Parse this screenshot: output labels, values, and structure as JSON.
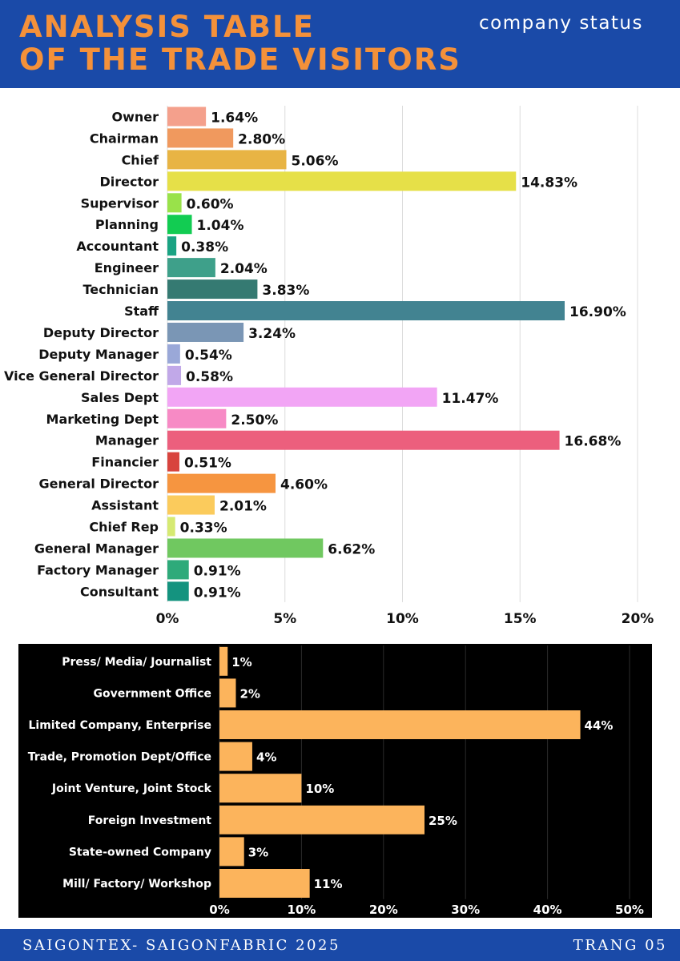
{
  "header": {
    "title_line1": "ANALYSIS TABLE",
    "title_line2": "OF THE TRADE VISITORS",
    "subtitle": "company status"
  },
  "footer": {
    "left": "SAIGONTEX- SAIGONFABRIC 2025",
    "right": "TRANG 05"
  },
  "chart_data": [
    {
      "type": "bar",
      "orientation": "horizontal",
      "categories": [
        "Owner",
        "Chairman",
        "Chief",
        "Director",
        "Supervisor",
        "Planning",
        "Accountant",
        "Engineer",
        "Technician",
        "Staff",
        "Deputy Director",
        "Deputy Manager",
        "Vice General Director",
        "Sales Dept",
        "Marketing Dept",
        "Manager",
        "Financier",
        "General Director",
        "Assistant",
        "Chief Rep",
        "General Manager",
        "Factory Manager",
        "Consultant"
      ],
      "values": [
        1.64,
        2.8,
        5.06,
        14.83,
        0.6,
        1.04,
        0.38,
        2.04,
        3.83,
        16.9,
        3.24,
        0.54,
        0.58,
        11.47,
        2.5,
        16.68,
        0.51,
        4.6,
        2.01,
        0.33,
        6.62,
        0.91,
        0.91
      ],
      "value_labels": [
        "1.64%",
        "2.80%",
        "5.06%",
        "14.83%",
        "0.60%",
        "1.04%",
        "0.38%",
        "2.04%",
        "3.83%",
        "16.90%",
        "3.24%",
        "0.54%",
        "0.58%",
        "11.47%",
        "2.50%",
        "16.68%",
        "0.51%",
        "4.60%",
        "2.01%",
        "0.33%",
        "6.62%",
        "0.91%",
        "0.91%"
      ],
      "colors": [
        "#f4a08c",
        "#f0995e",
        "#e8b444",
        "#e6e048",
        "#99e24a",
        "#12cc52",
        "#1aa383",
        "#3ea08a",
        "#357a72",
        "#428391",
        "#7a96b5",
        "#9aa8d8",
        "#c1a8e8",
        "#f2a5f5",
        "#f78ac5",
        "#ec5f7d",
        "#d8443e",
        "#f69540",
        "#fbcb5c",
        "#d6ea72",
        "#70c860",
        "#2eaa7a",
        "#14937f"
      ],
      "xlim": [
        0,
        20
      ],
      "x_ticks": [
        0,
        5,
        10,
        15,
        20
      ],
      "x_tick_labels": [
        "0%",
        "5%",
        "10%",
        "15%",
        "20%"
      ],
      "grid": true,
      "title": "",
      "xlabel": "",
      "ylabel": ""
    },
    {
      "type": "bar",
      "orientation": "horizontal",
      "categories": [
        "Press/ Media/ Journalist",
        "Government Office",
        "Limited Company, Enterprise",
        "Trade, Promotion Dept/Office",
        "Joint Venture, Joint Stock",
        "Foreign Investment",
        "State-owned Company",
        "Mill/ Factory/ Workshop"
      ],
      "values": [
        1,
        2,
        44,
        4,
        10,
        25,
        3,
        11
      ],
      "value_labels": [
        "1%",
        "2%",
        "44%",
        "4%",
        "10%",
        "25%",
        "3%",
        "11%"
      ],
      "bar_color": "#fcb45c",
      "background": "#000000",
      "xlim": [
        0,
        50
      ],
      "x_ticks": [
        0,
        10,
        20,
        30,
        40,
        50
      ],
      "x_tick_labels": [
        "0%",
        "10%",
        "20%",
        "30%",
        "40%",
        "50%"
      ],
      "grid": true,
      "title": "",
      "xlabel": "",
      "ylabel": ""
    }
  ]
}
